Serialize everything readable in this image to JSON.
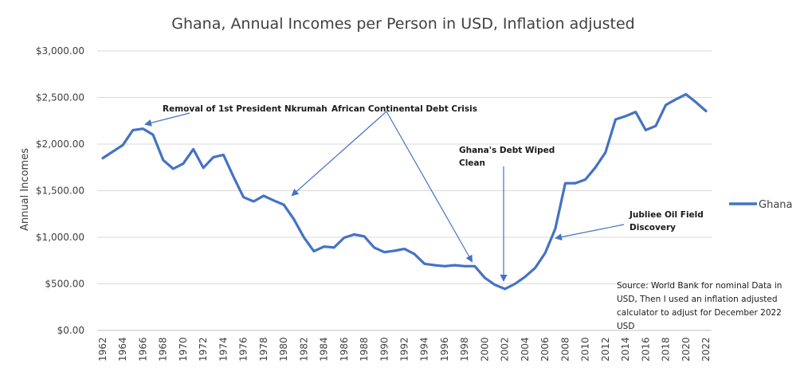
{
  "chart_data": {
    "type": "line",
    "title": "Ghana, Annual Incomes per Person in USD, Inflation adjusted",
    "ylabel": "Annual Incomes",
    "xlabel": "",
    "ylim": [
      0,
      3000
    ],
    "yticks": [
      "$0.00",
      "$500.00",
      "$1,000.00",
      "$1,500.00",
      "$2,000.00",
      "$2,500.00",
      "$3,000.00"
    ],
    "xticks": [
      "1962",
      "1964",
      "1966",
      "1968",
      "1970",
      "1972",
      "1974",
      "1976",
      "1978",
      "1980",
      "1982",
      "1984",
      "1986",
      "1988",
      "1990",
      "1992",
      "1994",
      "1996",
      "1998",
      "2000",
      "2002",
      "2004",
      "2006",
      "2008",
      "2010",
      "2012",
      "2014",
      "2016",
      "2018",
      "2020",
      "2022"
    ],
    "grid": true,
    "legend_position": "right",
    "color": "#4472c4",
    "series": [
      {
        "name": "Ghana",
        "x": [
          1962,
          1963,
          1964,
          1965,
          1966,
          1967,
          1968,
          1969,
          1970,
          1971,
          1972,
          1973,
          1974,
          1975,
          1976,
          1977,
          1978,
          1979,
          1980,
          1981,
          1982,
          1983,
          1984,
          1985,
          1986,
          1987,
          1988,
          1989,
          1990,
          1991,
          1992,
          1993,
          1994,
          1995,
          1996,
          1997,
          1998,
          1999,
          2000,
          2001,
          2002,
          2003,
          2004,
          2005,
          2006,
          2007,
          2008,
          2009,
          2010,
          2011,
          2012,
          2013,
          2014,
          2015,
          2016,
          2017,
          2018,
          2019,
          2020,
          2021,
          2022
        ],
        "values": [
          1850,
          1920,
          1990,
          2150,
          2165,
          2100,
          1830,
          1735,
          1790,
          1945,
          1745,
          1860,
          1885,
          1650,
          1430,
          1385,
          1445,
          1395,
          1350,
          1195,
          1000,
          850,
          900,
          890,
          995,
          1030,
          1010,
          890,
          840,
          855,
          875,
          820,
          715,
          700,
          690,
          700,
          690,
          690,
          565,
          490,
          445,
          500,
          575,
          670,
          830,
          1090,
          1580,
          1580,
          1620,
          1750,
          1910,
          2265,
          2300,
          2345,
          2150,
          2195,
          2420,
          2480,
          2535,
          2450,
          2355
        ]
      }
    ],
    "annotations": [
      {
        "id": "nkrumah",
        "lines": [
          "Removal of 1st President Nkrumah"
        ]
      },
      {
        "id": "debt-crisis",
        "lines": [
          "African Continental Debt Crisis"
        ]
      },
      {
        "id": "debt-wiped",
        "lines": [
          "Ghana's Debt Wiped",
          "Clean"
        ]
      },
      {
        "id": "oil",
        "lines": [
          "Jubliee Oil Field",
          "Discovery"
        ]
      }
    ],
    "source_note": [
      "Source: World Bank for nominal Data in",
      "USD, Then I used an inflation adjusted",
      "calculator to adjust for December 2022",
      "USD"
    ]
  }
}
